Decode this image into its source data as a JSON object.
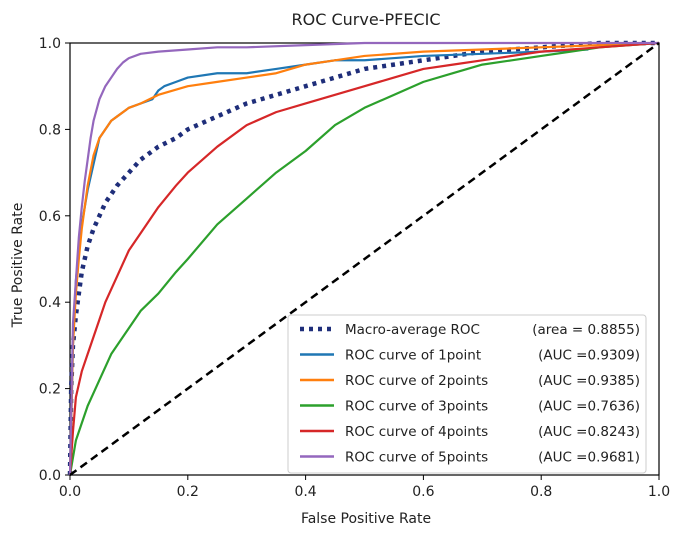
{
  "chart_data": {
    "type": "line",
    "title": "ROC Curve-PFECIC",
    "xlabel": "False Positive Rate",
    "ylabel": "True Positive Rate",
    "xlim": [
      0.0,
      1.0
    ],
    "ylim": [
      0.0,
      1.0
    ],
    "xticks": [
      "0.0",
      "0.2",
      "0.4",
      "0.6",
      "0.8",
      "1.0"
    ],
    "yticks": [
      "0.0",
      "0.2",
      "0.4",
      "0.6",
      "0.8",
      "1.0"
    ],
    "legend_position": "lower-right",
    "diagonal": {
      "name": "chance",
      "x": [
        0,
        1
      ],
      "y": [
        0,
        1
      ],
      "color": "#000000",
      "style": "dashed"
    },
    "series": [
      {
        "name": "Macro-average ROC (area = 0.8855)",
        "color": "#1f2e7a",
        "style": "dotted",
        "x": [
          0,
          0.002,
          0.005,
          0.01,
          0.015,
          0.02,
          0.03,
          0.04,
          0.05,
          0.06,
          0.08,
          0.1,
          0.12,
          0.15,
          0.18,
          0.2,
          0.25,
          0.3,
          0.35,
          0.4,
          0.45,
          0.5,
          0.55,
          0.6,
          0.65,
          0.7,
          0.8,
          0.9,
          1.0
        ],
        "y": [
          0,
          0.2,
          0.3,
          0.37,
          0.42,
          0.47,
          0.53,
          0.57,
          0.6,
          0.63,
          0.67,
          0.7,
          0.73,
          0.76,
          0.78,
          0.8,
          0.83,
          0.86,
          0.88,
          0.9,
          0.92,
          0.94,
          0.95,
          0.96,
          0.97,
          0.98,
          0.99,
          1.0,
          1.0
        ]
      },
      {
        "name": "ROC curve of 1point",
        "auc": "0.9309",
        "color": "#1f77b4",
        "style": "solid",
        "x": [
          0,
          0.005,
          0.01,
          0.015,
          0.02,
          0.03,
          0.04,
          0.05,
          0.06,
          0.07,
          0.08,
          0.09,
          0.1,
          0.12,
          0.14,
          0.15,
          0.16,
          0.18,
          0.2,
          0.25,
          0.3,
          0.35,
          0.4,
          0.45,
          0.5,
          0.6,
          0.7,
          0.8,
          0.88
        ],
        "y": [
          0,
          0.3,
          0.45,
          0.52,
          0.58,
          0.66,
          0.72,
          0.78,
          0.8,
          0.82,
          0.83,
          0.84,
          0.85,
          0.86,
          0.87,
          0.89,
          0.9,
          0.91,
          0.92,
          0.93,
          0.93,
          0.94,
          0.95,
          0.96,
          0.96,
          0.97,
          0.975,
          0.98,
          0.985
        ]
      },
      {
        "name": "ROC curve of 2points",
        "auc": "0.9385",
        "color": "#ff7f0e",
        "style": "solid",
        "x": [
          0,
          0.005,
          0.01,
          0.015,
          0.02,
          0.03,
          0.04,
          0.05,
          0.06,
          0.07,
          0.08,
          0.1,
          0.12,
          0.15,
          0.2,
          0.25,
          0.3,
          0.35,
          0.4,
          0.45,
          0.5,
          0.6,
          0.7,
          0.8,
          0.9,
          1.0
        ],
        "y": [
          0,
          0.3,
          0.42,
          0.5,
          0.57,
          0.67,
          0.74,
          0.78,
          0.8,
          0.82,
          0.83,
          0.85,
          0.86,
          0.88,
          0.9,
          0.91,
          0.92,
          0.93,
          0.95,
          0.96,
          0.97,
          0.98,
          0.985,
          0.99,
          0.995,
          1.0
        ]
      },
      {
        "name": "ROC curve of 3points",
        "auc": "0.7636",
        "color": "#2ca02c",
        "style": "solid",
        "x": [
          0,
          0.005,
          0.01,
          0.02,
          0.03,
          0.04,
          0.05,
          0.07,
          0.1,
          0.12,
          0.15,
          0.18,
          0.2,
          0.25,
          0.3,
          0.35,
          0.4,
          0.45,
          0.5,
          0.55,
          0.6,
          0.65,
          0.7,
          0.75,
          0.8,
          0.85,
          0.9,
          0.95,
          1.0
        ],
        "y": [
          0,
          0.04,
          0.08,
          0.12,
          0.16,
          0.19,
          0.22,
          0.28,
          0.34,
          0.38,
          0.42,
          0.47,
          0.5,
          0.58,
          0.64,
          0.7,
          0.75,
          0.81,
          0.85,
          0.88,
          0.91,
          0.93,
          0.95,
          0.96,
          0.97,
          0.98,
          0.99,
          0.995,
          1.0
        ]
      },
      {
        "name": "ROC curve of 4points",
        "auc": "0.8243",
        "color": "#d62728",
        "style": "solid",
        "x": [
          0,
          0.005,
          0.01,
          0.02,
          0.03,
          0.04,
          0.05,
          0.06,
          0.08,
          0.1,
          0.12,
          0.15,
          0.18,
          0.2,
          0.25,
          0.3,
          0.35,
          0.4,
          0.45,
          0.5,
          0.55,
          0.6,
          0.65,
          0.7,
          0.8,
          0.9,
          1.0
        ],
        "y": [
          0,
          0.1,
          0.18,
          0.24,
          0.28,
          0.32,
          0.36,
          0.4,
          0.46,
          0.52,
          0.56,
          0.62,
          0.67,
          0.7,
          0.76,
          0.81,
          0.84,
          0.86,
          0.88,
          0.9,
          0.92,
          0.94,
          0.95,
          0.96,
          0.98,
          0.99,
          1.0
        ]
      },
      {
        "name": "ROC curve of 5points",
        "auc": "0.9681",
        "color": "#9467bd",
        "style": "solid",
        "x": [
          0,
          0.005,
          0.01,
          0.015,
          0.02,
          0.025,
          0.03,
          0.035,
          0.04,
          0.05,
          0.06,
          0.07,
          0.08,
          0.09,
          0.1,
          0.12,
          0.15,
          0.2,
          0.25,
          0.3,
          0.4,
          0.5,
          0.6,
          0.8,
          1.0
        ],
        "y": [
          0,
          0.35,
          0.45,
          0.55,
          0.62,
          0.68,
          0.73,
          0.78,
          0.82,
          0.87,
          0.9,
          0.92,
          0.94,
          0.955,
          0.965,
          0.975,
          0.98,
          0.985,
          0.99,
          0.99,
          0.995,
          1.0,
          1.0,
          1.0,
          1.0
        ]
      }
    ]
  },
  "legend": [
    {
      "prefix": "Macro-average ROC",
      "suffix": "(area = 0.8855)"
    },
    {
      "prefix": "ROC curve of 1point",
      "suffix": "(AUC =0.9309)"
    },
    {
      "prefix": "ROC curve of 2points",
      "suffix": "(AUC =0.9385)"
    },
    {
      "prefix": "ROC curve of 3points",
      "suffix": "(AUC =0.7636)"
    },
    {
      "prefix": "ROC curve of 4points",
      "suffix": "(AUC =0.8243)"
    },
    {
      "prefix": "ROC curve of 5points",
      "suffix": "(AUC =0.9681)"
    }
  ]
}
